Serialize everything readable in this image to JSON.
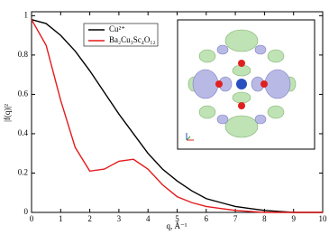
{
  "chart_data": {
    "type": "line",
    "x_label": "q, Å⁻¹",
    "y_label": "|f(q)|²",
    "x": [
      0,
      0.5,
      1,
      1.5,
      2,
      2.5,
      3,
      3.5,
      4,
      4.5,
      5,
      5.5,
      6,
      6.5,
      7,
      7.5,
      8,
      8.5,
      9,
      9.5,
      10
    ],
    "series": [
      {
        "name": "Cu²⁺",
        "color": "#000000",
        "values": [
          0.98,
          0.96,
          0.9,
          0.82,
          0.72,
          0.61,
          0.5,
          0.4,
          0.3,
          0.22,
          0.16,
          0.11,
          0.07,
          0.05,
          0.03,
          0.02,
          0.01,
          0.005,
          0,
          0,
          0
        ]
      },
      {
        "name": "Ba₂Cu₃Sc₄O₁₂",
        "color": "#e41a1c",
        "values": [
          0.98,
          0.85,
          0.57,
          0.33,
          0.21,
          0.22,
          0.26,
          0.27,
          0.22,
          0.14,
          0.08,
          0.05,
          0.03,
          0.02,
          0.01,
          0.005,
          0,
          0,
          0,
          0,
          0
        ]
      }
    ],
    "xlim": [
      0,
      10
    ],
    "xticks": [
      0,
      1,
      2,
      3,
      4,
      5,
      6,
      7,
      8,
      9,
      10
    ],
    "ylim": [
      0,
      1.02
    ],
    "yticks": [
      0,
      0.2,
      0.4,
      0.6,
      0.8,
      1
    ]
  }
}
